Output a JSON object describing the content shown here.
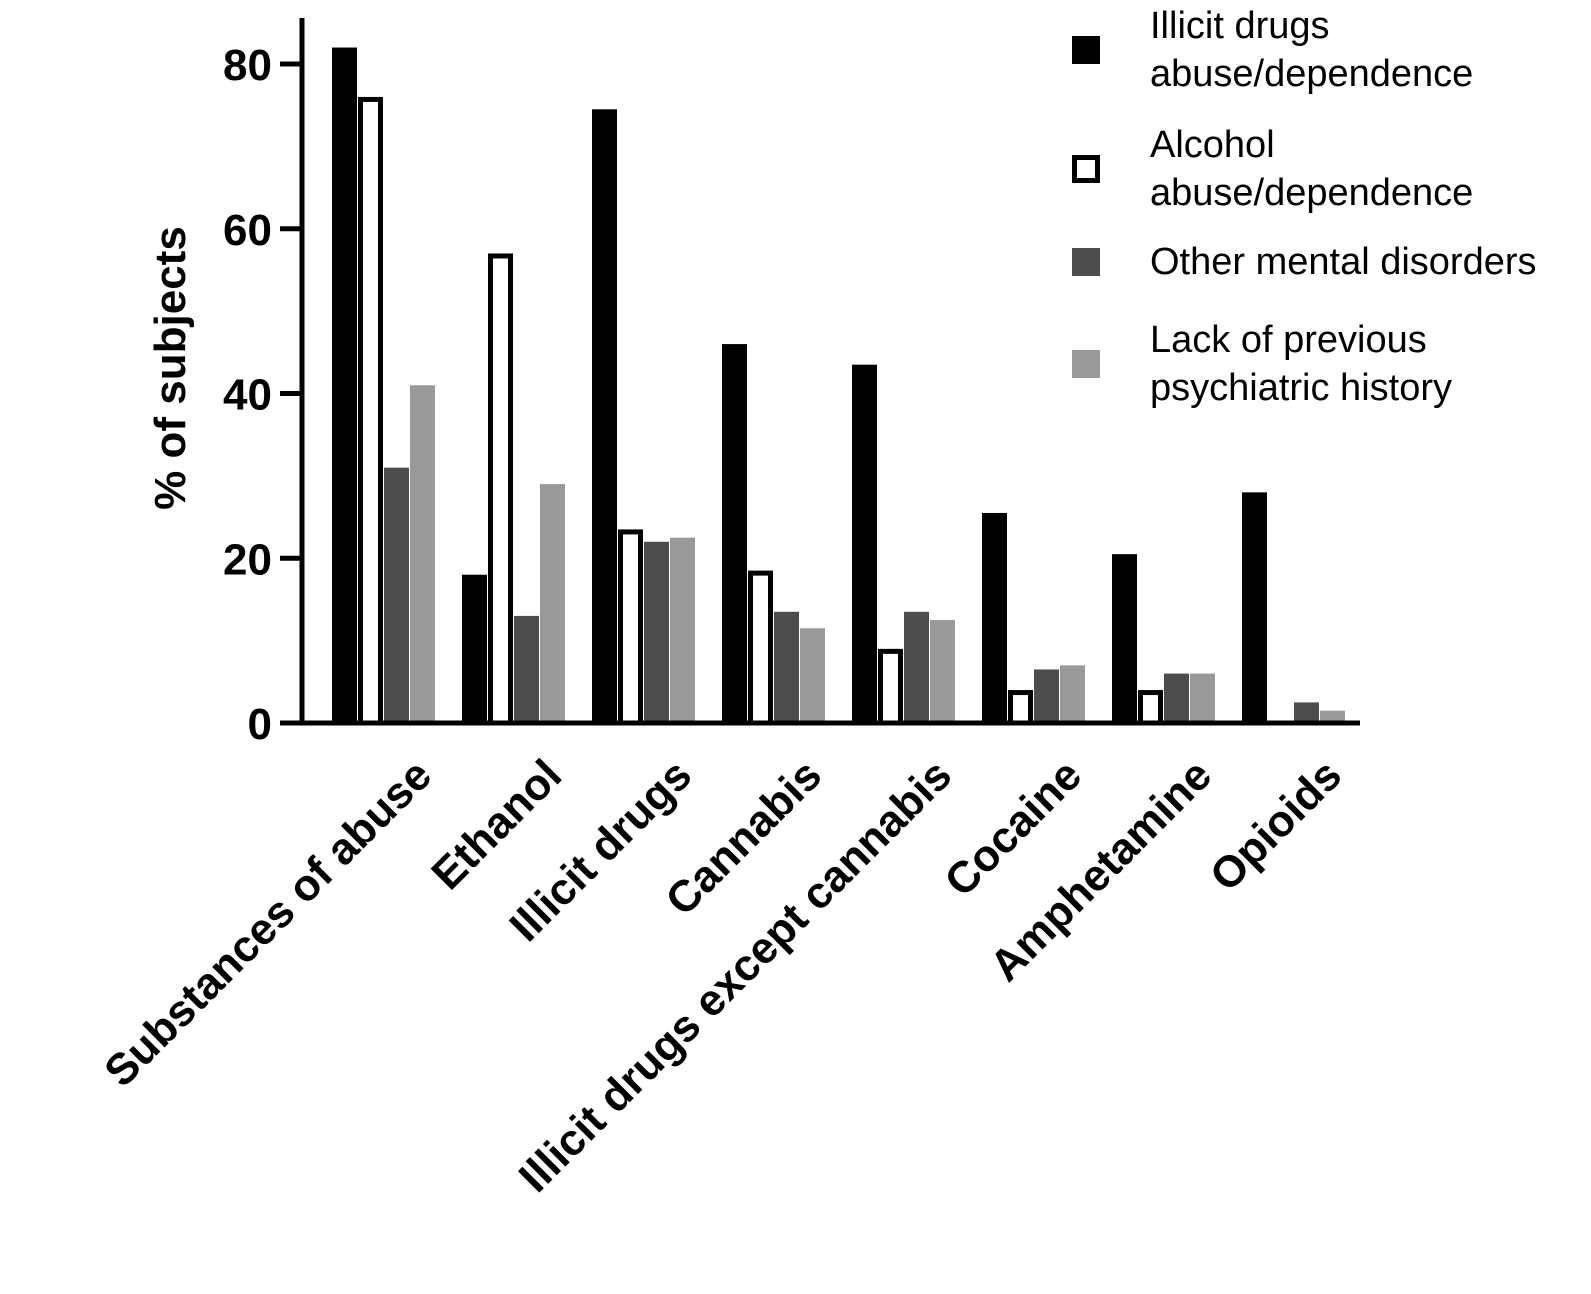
{
  "chart_data": {
    "type": "bar",
    "ylabel": "% of subjects",
    "ylim": [
      0,
      80
    ],
    "yticks": [
      0,
      20,
      40,
      60,
      80
    ],
    "grid": false,
    "legend_position": "top-right",
    "categories": [
      "Substances of abuse",
      "Ethanol",
      "Illicit drugs",
      "Cannabis",
      "Illicit drugs except cannabis",
      "Cocaine",
      "Amphetamine",
      "Opioids"
    ],
    "series": [
      {
        "name_lines": [
          "Illicit drugs",
          "abuse/dependence"
        ],
        "fill": "#000000",
        "stroke": "#000000",
        "values": [
          82,
          18,
          74.5,
          46,
          43.5,
          25.5,
          20.5,
          28
        ]
      },
      {
        "name_lines": [
          "Alcohol",
          "abuse/dependence"
        ],
        "fill": "#ffffff",
        "stroke": "#000000",
        "values": [
          76,
          57,
          23.5,
          18.5,
          9,
          4,
          4,
          0
        ]
      },
      {
        "name_lines": [
          "Other mental disorders"
        ],
        "fill": "#4d4d4d",
        "stroke": "#4d4d4d",
        "values": [
          31,
          13,
          22,
          13.5,
          13.5,
          6.5,
          6,
          2.5
        ]
      },
      {
        "name_lines": [
          "Lack of previous",
          "psychiatric history"
        ],
        "fill": "#999999",
        "stroke": "#999999",
        "values": [
          41,
          29,
          22.5,
          11.5,
          12.5,
          7,
          6,
          1.5
        ]
      }
    ]
  }
}
